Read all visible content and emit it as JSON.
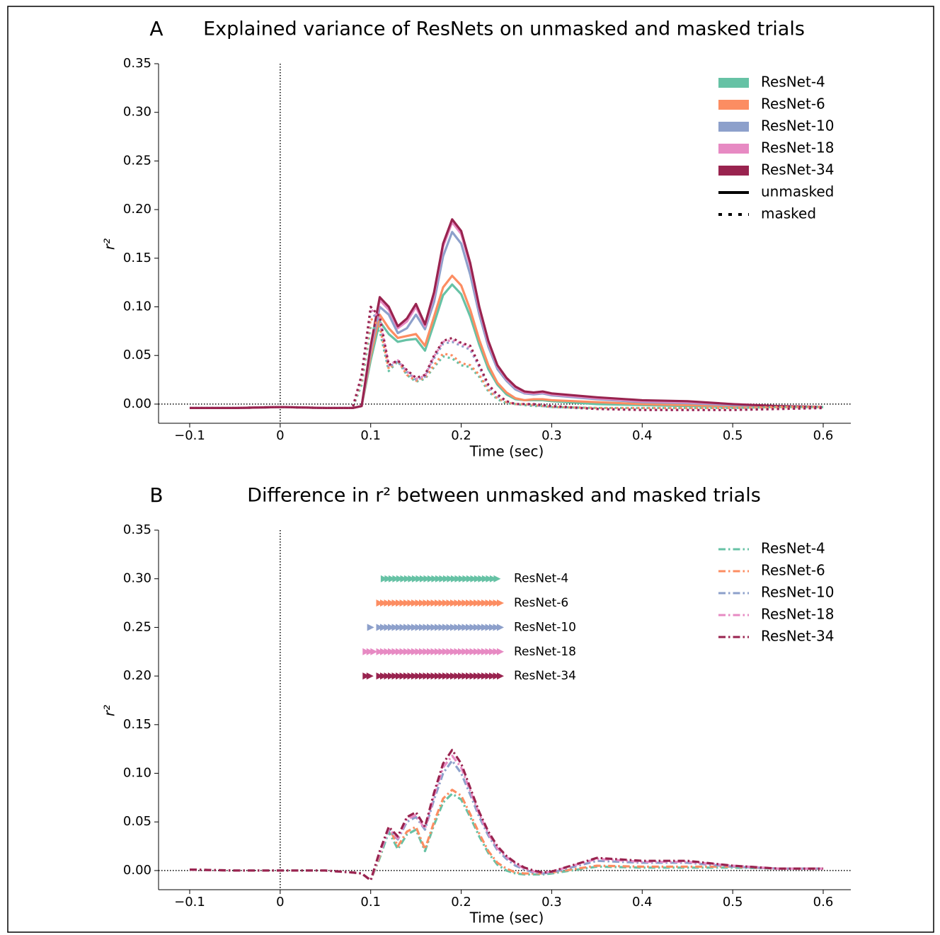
{
  "chart_data": [
    {
      "type": "line",
      "panel_label": "A",
      "title": "Explained variance of ResNets on unmasked and masked trials",
      "xlabel": "Time (sec)",
      "ylabel": "r²",
      "x": [
        -0.1,
        -0.05,
        0,
        0.05,
        0.08,
        0.09,
        0.1,
        0.11,
        0.12,
        0.13,
        0.14,
        0.15,
        0.16,
        0.17,
        0.18,
        0.19,
        0.2,
        0.21,
        0.22,
        0.23,
        0.24,
        0.25,
        0.26,
        0.27,
        0.28,
        0.29,
        0.3,
        0.35,
        0.4,
        0.45,
        0.5,
        0.55,
        0.6
      ],
      "xlim": [
        -0.1344,
        0.6305
      ],
      "ylim": [
        -0.0197,
        0.35
      ],
      "xticks": [
        {
          "value": -0.1,
          "label": "−0.1"
        },
        0,
        0.1,
        0.2,
        0.3,
        0.4,
        0.5,
        0.6
      ],
      "yticks": [
        {
          "value": 0,
          "label": "0.00"
        },
        0.05,
        {
          "value": 0.1,
          "label": "0.10"
        },
        0.15,
        {
          "value": 0.2,
          "label": "0.20"
        },
        0.25,
        {
          "value": 0.3,
          "label": "0.30"
        },
        0.35
      ],
      "hline": 0,
      "vline": 0,
      "legend": "upper right",
      "conditions": [
        {
          "name": "unmasked",
          "linestyle": "solid"
        },
        {
          "name": "masked",
          "linestyle": "dotted"
        }
      ],
      "series": [
        {
          "name": "ResNet-4",
          "color": "#66c2a5",
          "values": [
            [
              -0.004,
              -0.004,
              -0.003,
              -0.004,
              -0.004,
              -0.002,
              0.045,
              0.085,
              0.072,
              0.064,
              0.066,
              0.067,
              0.055,
              0.083,
              0.112,
              0.123,
              0.113,
              0.09,
              0.061,
              0.036,
              0.02,
              0.01,
              0.005,
              0.004,
              0.004,
              0.004,
              0.003,
              0.0,
              -0.001,
              -0.002,
              -0.003,
              -0.003,
              -0.003
            ],
            [
              -0.004,
              -0.004,
              -0.003,
              -0.004,
              -0.004,
              0.02,
              0.08,
              0.075,
              0.034,
              0.044,
              0.03,
              0.023,
              0.026,
              0.038,
              0.049,
              0.047,
              0.04,
              0.038,
              0.028,
              0.013,
              0.005,
              0.001,
              0.0,
              -0.001,
              -0.002,
              -0.002,
              -0.003,
              -0.004,
              -0.004,
              -0.004,
              -0.004,
              -0.003,
              -0.003
            ]
          ]
        },
        {
          "name": "ResNet-6",
          "color": "#fc8d62",
          "values": [
            [
              -0.004,
              -0.004,
              -0.003,
              -0.004,
              -0.004,
              -0.002,
              0.05,
              0.092,
              0.078,
              0.068,
              0.07,
              0.072,
              0.06,
              0.09,
              0.12,
              0.132,
              0.122,
              0.097,
              0.066,
              0.04,
              0.022,
              0.012,
              0.006,
              0.004,
              0.005,
              0.005,
              0.004,
              0.002,
              0.0,
              -0.001,
              -0.002,
              -0.003,
              -0.003
            ],
            [
              -0.004,
              -0.004,
              -0.003,
              -0.004,
              -0.004,
              0.025,
              0.088,
              0.08,
              0.036,
              0.045,
              0.03,
              0.024,
              0.027,
              0.04,
              0.052,
              0.05,
              0.042,
              0.04,
              0.03,
              0.015,
              0.006,
              0.002,
              0.0,
              0.0,
              -0.001,
              -0.002,
              -0.003,
              -0.004,
              -0.004,
              -0.004,
              -0.004,
              -0.003,
              -0.003
            ]
          ]
        },
        {
          "name": "ResNet-10",
          "color": "#8da0cb",
          "values": [
            [
              -0.004,
              -0.004,
              -0.003,
              -0.004,
              -0.004,
              -0.002,
              0.055,
              0.1,
              0.092,
              0.073,
              0.078,
              0.092,
              0.077,
              0.105,
              0.152,
              0.177,
              0.165,
              0.133,
              0.092,
              0.059,
              0.036,
              0.024,
              0.015,
              0.011,
              0.01,
              0.011,
              0.009,
              0.005,
              0.002,
              0.001,
              -0.001,
              -0.002,
              -0.003
            ],
            [
              -0.004,
              -0.004,
              -0.003,
              -0.004,
              -0.004,
              0.028,
              0.095,
              0.085,
              0.038,
              0.044,
              0.033,
              0.025,
              0.028,
              0.047,
              0.062,
              0.064,
              0.06,
              0.056,
              0.038,
              0.018,
              0.008,
              0.003,
              0.0,
              0.0,
              -0.001,
              -0.002,
              -0.003,
              -0.005,
              -0.006,
              -0.006,
              -0.006,
              -0.005,
              -0.004
            ]
          ]
        },
        {
          "name": "ResNet-18",
          "color": "#e78ac3",
          "values": [
            [
              -0.004,
              -0.004,
              -0.003,
              -0.004,
              -0.004,
              -0.002,
              0.058,
              0.107,
              0.097,
              0.078,
              0.085,
              0.1,
              0.08,
              0.112,
              0.162,
              0.187,
              0.175,
              0.142,
              0.098,
              0.063,
              0.039,
              0.026,
              0.017,
              0.012,
              0.011,
              0.012,
              0.01,
              0.006,
              0.003,
              0.002,
              0.0,
              -0.002,
              -0.003
            ],
            [
              -0.004,
              -0.004,
              -0.003,
              -0.004,
              -0.004,
              0.03,
              0.098,
              0.088,
              0.04,
              0.045,
              0.034,
              0.026,
              0.029,
              0.049,
              0.064,
              0.066,
              0.062,
              0.058,
              0.039,
              0.019,
              0.009,
              0.003,
              0.0,
              0.0,
              0.0,
              -0.001,
              -0.002,
              -0.005,
              -0.006,
              -0.006,
              -0.006,
              -0.005,
              -0.004
            ]
          ]
        },
        {
          "name": "ResNet-34",
          "color": "#99234f",
          "values": [
            [
              -0.004,
              -0.004,
              -0.003,
              -0.004,
              -0.004,
              -0.002,
              0.06,
              0.11,
              0.1,
              0.08,
              0.088,
              0.103,
              0.082,
              0.115,
              0.165,
              0.19,
              0.178,
              0.145,
              0.1,
              0.065,
              0.04,
              0.027,
              0.018,
              0.013,
              0.012,
              0.013,
              0.011,
              0.007,
              0.004,
              0.003,
              0.0,
              -0.002,
              -0.003
            ],
            [
              -0.004,
              -0.004,
              -0.003,
              -0.004,
              -0.004,
              0.03,
              0.1,
              0.09,
              0.04,
              0.045,
              0.035,
              0.027,
              0.03,
              0.05,
              0.065,
              0.068,
              0.063,
              0.06,
              0.04,
              0.02,
              0.01,
              0.003,
              0.0,
              0.0,
              0.0,
              -0.001,
              -0.002,
              -0.005,
              -0.006,
              -0.006,
              -0.006,
              -0.005,
              -0.004
            ]
          ]
        }
      ]
    },
    {
      "type": "line",
      "panel_label": "B",
      "title": "Difference in r² between unmasked and masked trials",
      "xlabel": "Time (sec)",
      "ylabel": "r²",
      "x": [
        -0.1,
        -0.05,
        0,
        0.05,
        0.08,
        0.09,
        0.1,
        0.11,
        0.12,
        0.13,
        0.14,
        0.15,
        0.16,
        0.17,
        0.18,
        0.19,
        0.2,
        0.21,
        0.22,
        0.23,
        0.24,
        0.25,
        0.26,
        0.27,
        0.28,
        0.29,
        0.3,
        0.35,
        0.4,
        0.45,
        0.5,
        0.55,
        0.6
      ],
      "xlim": [
        -0.1344,
        0.6305
      ],
      "ylim": [
        -0.0197,
        0.35
      ],
      "xticks": [
        {
          "value": -0.1,
          "label": "−0.1"
        },
        0,
        0.1,
        0.2,
        0.3,
        0.4,
        0.5,
        0.6
      ],
      "yticks": [
        {
          "value": 0,
          "label": "0.00"
        },
        0.05,
        {
          "value": 0.1,
          "label": "0.10"
        },
        0.15,
        {
          "value": 0.2,
          "label": "0.20"
        },
        0.25,
        {
          "value": 0.3,
          "label": "0.30"
        },
        0.35
      ],
      "hline": 0,
      "vline": 0,
      "legend": "upper right",
      "linestyle": "dashdot",
      "series": [
        {
          "name": "ResNet-4",
          "color": "#66c2a5",
          "values": [
            0.001,
            0.0,
            0.0,
            0.0,
            -0.002,
            -0.003,
            -0.01,
            0.013,
            0.04,
            0.022,
            0.037,
            0.042,
            0.02,
            0.047,
            0.07,
            0.079,
            0.073,
            0.055,
            0.035,
            0.018,
            0.006,
            0.0,
            -0.003,
            -0.004,
            -0.004,
            -0.004,
            -0.003,
            0.004,
            0.003,
            0.003,
            0.003,
            0.002,
            0.002
          ]
        },
        {
          "name": "ResNet-6",
          "color": "#fc8d62",
          "values": [
            0.001,
            0.0,
            0.0,
            0.0,
            -0.002,
            -0.003,
            -0.01,
            0.015,
            0.045,
            0.025,
            0.04,
            0.045,
            0.022,
            0.05,
            0.074,
            0.083,
            0.077,
            0.058,
            0.038,
            0.02,
            0.008,
            0.002,
            -0.002,
            -0.003,
            -0.003,
            -0.003,
            -0.002,
            0.005,
            0.004,
            0.004,
            0.004,
            0.002,
            0.002
          ]
        },
        {
          "name": "ResNet-10",
          "color": "#8da0cb",
          "values": [
            0.001,
            0.0,
            0.0,
            0.0,
            -0.002,
            -0.003,
            -0.01,
            0.017,
            0.042,
            0.032,
            0.05,
            0.055,
            0.042,
            0.073,
            0.1,
            0.113,
            0.1,
            0.078,
            0.055,
            0.036,
            0.021,
            0.012,
            0.005,
            0.001,
            -0.002,
            -0.003,
            -0.002,
            0.01,
            0.008,
            0.008,
            0.004,
            0.002,
            0.002
          ]
        },
        {
          "name": "ResNet-18",
          "color": "#e78ac3",
          "values": [
            0.001,
            0.0,
            0.0,
            0.0,
            -0.002,
            -0.003,
            -0.01,
            0.018,
            0.043,
            0.033,
            0.053,
            0.057,
            0.043,
            0.077,
            0.106,
            0.118,
            0.106,
            0.082,
            0.058,
            0.038,
            0.023,
            0.014,
            0.007,
            0.002,
            -0.001,
            -0.002,
            -0.001,
            0.012,
            0.009,
            0.009,
            0.005,
            0.002,
            0.002
          ]
        },
        {
          "name": "ResNet-34",
          "color": "#99234f",
          "values": [
            0.001,
            0.0,
            0.0,
            0.0,
            -0.002,
            -0.003,
            -0.01,
            0.02,
            0.045,
            0.035,
            0.055,
            0.06,
            0.045,
            0.08,
            0.11,
            0.124,
            0.11,
            0.085,
            0.06,
            0.04,
            0.025,
            0.015,
            0.008,
            0.003,
            0.0,
            -0.002,
            -0.001,
            0.013,
            0.01,
            0.01,
            0.005,
            0.002,
            0.002
          ]
        }
      ],
      "significance": [
        {
          "name": "ResNet-4",
          "y": 0.3,
          "intervals": [
            [
              0.115,
              0.24
            ]
          ]
        },
        {
          "name": "ResNet-6",
          "y": 0.275,
          "intervals": [
            [
              0.11,
              0.245
            ]
          ]
        },
        {
          "name": "ResNet-10",
          "y": 0.25,
          "intervals": [
            [
              0.1,
              0.1
            ],
            [
              0.11,
              0.245
            ]
          ]
        },
        {
          "name": "ResNet-18",
          "y": 0.225,
          "intervals": [
            [
              0.095,
              0.105
            ],
            [
              0.11,
              0.245
            ]
          ]
        },
        {
          "name": "ResNet-34",
          "y": 0.2,
          "intervals": [
            [
              0.095,
              0.1
            ],
            [
              0.11,
              0.245
            ]
          ]
        }
      ]
    }
  ]
}
